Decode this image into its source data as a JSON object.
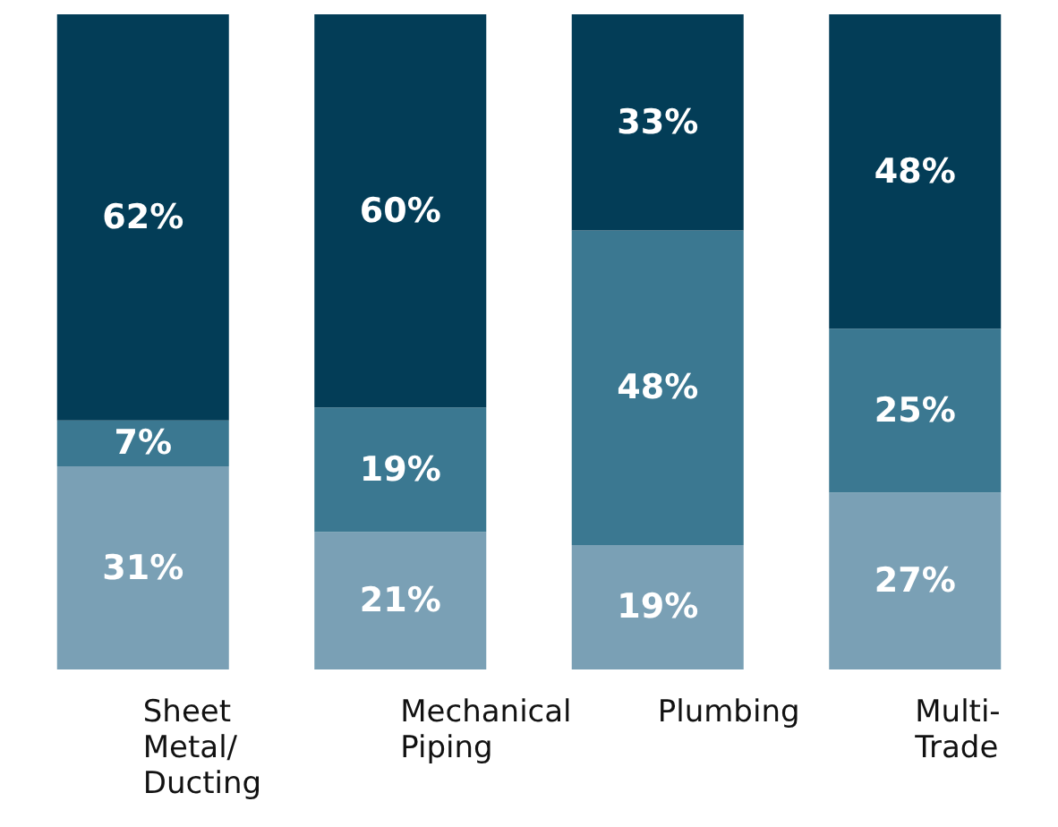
{
  "chart_data": {
    "type": "bar",
    "stacked": true,
    "categories": [
      "Sheet Metal/ Ducting",
      "Mechanical Piping",
      "Plumbing",
      "Multi- Trade"
    ],
    "series": [
      {
        "color": "#7aa0b5",
        "values": [
          31,
          21,
          19,
          27
        ],
        "value_labels": [
          "31%",
          "21%",
          "19%",
          "27%"
        ]
      },
      {
        "color": "#3b7891",
        "values": [
          7,
          19,
          48,
          25
        ],
        "value_labels": [
          "7%",
          "19%",
          "48%",
          "25%"
        ]
      },
      {
        "color": "#033d57",
        "values": [
          62,
          60,
          33,
          48
        ],
        "value_labels": [
          "62%",
          "60%",
          "33%",
          "48%"
        ]
      }
    ]
  }
}
